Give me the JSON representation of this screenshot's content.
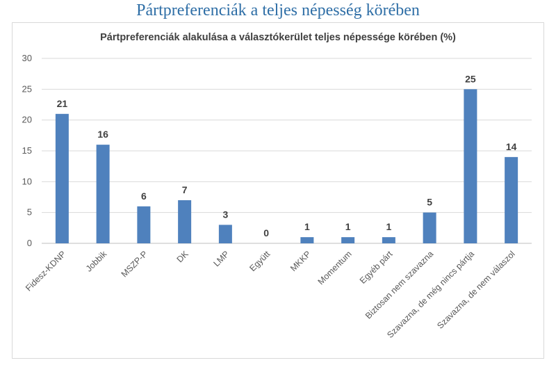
{
  "page": {
    "heading": "Pártpreferenciák a teljes népesség körében"
  },
  "chart_data": {
    "type": "bar",
    "title": "Pártpreferenciák alakulása a választókerület teljes népessége körében (%)",
    "xlabel": "",
    "ylabel": "",
    "ylim": [
      0,
      30
    ],
    "yticks": [
      0,
      5,
      10,
      15,
      20,
      25,
      30
    ],
    "grid": true,
    "legend": "none",
    "bar_color": "#4f81bd",
    "categories": [
      "Fidesz-KDNP",
      "Jobbik",
      "MSZP-P",
      "DK",
      "LMP",
      "Együtt",
      "MKKP",
      "Momentum",
      "Egyéb párt",
      "Biztosan nem szavazna",
      "Szavazna, de még nincs pártja",
      "Szavazna, de nem válaszol"
    ],
    "values": [
      21,
      16,
      6,
      7,
      3,
      0,
      1,
      1,
      1,
      5,
      25,
      14
    ]
  }
}
